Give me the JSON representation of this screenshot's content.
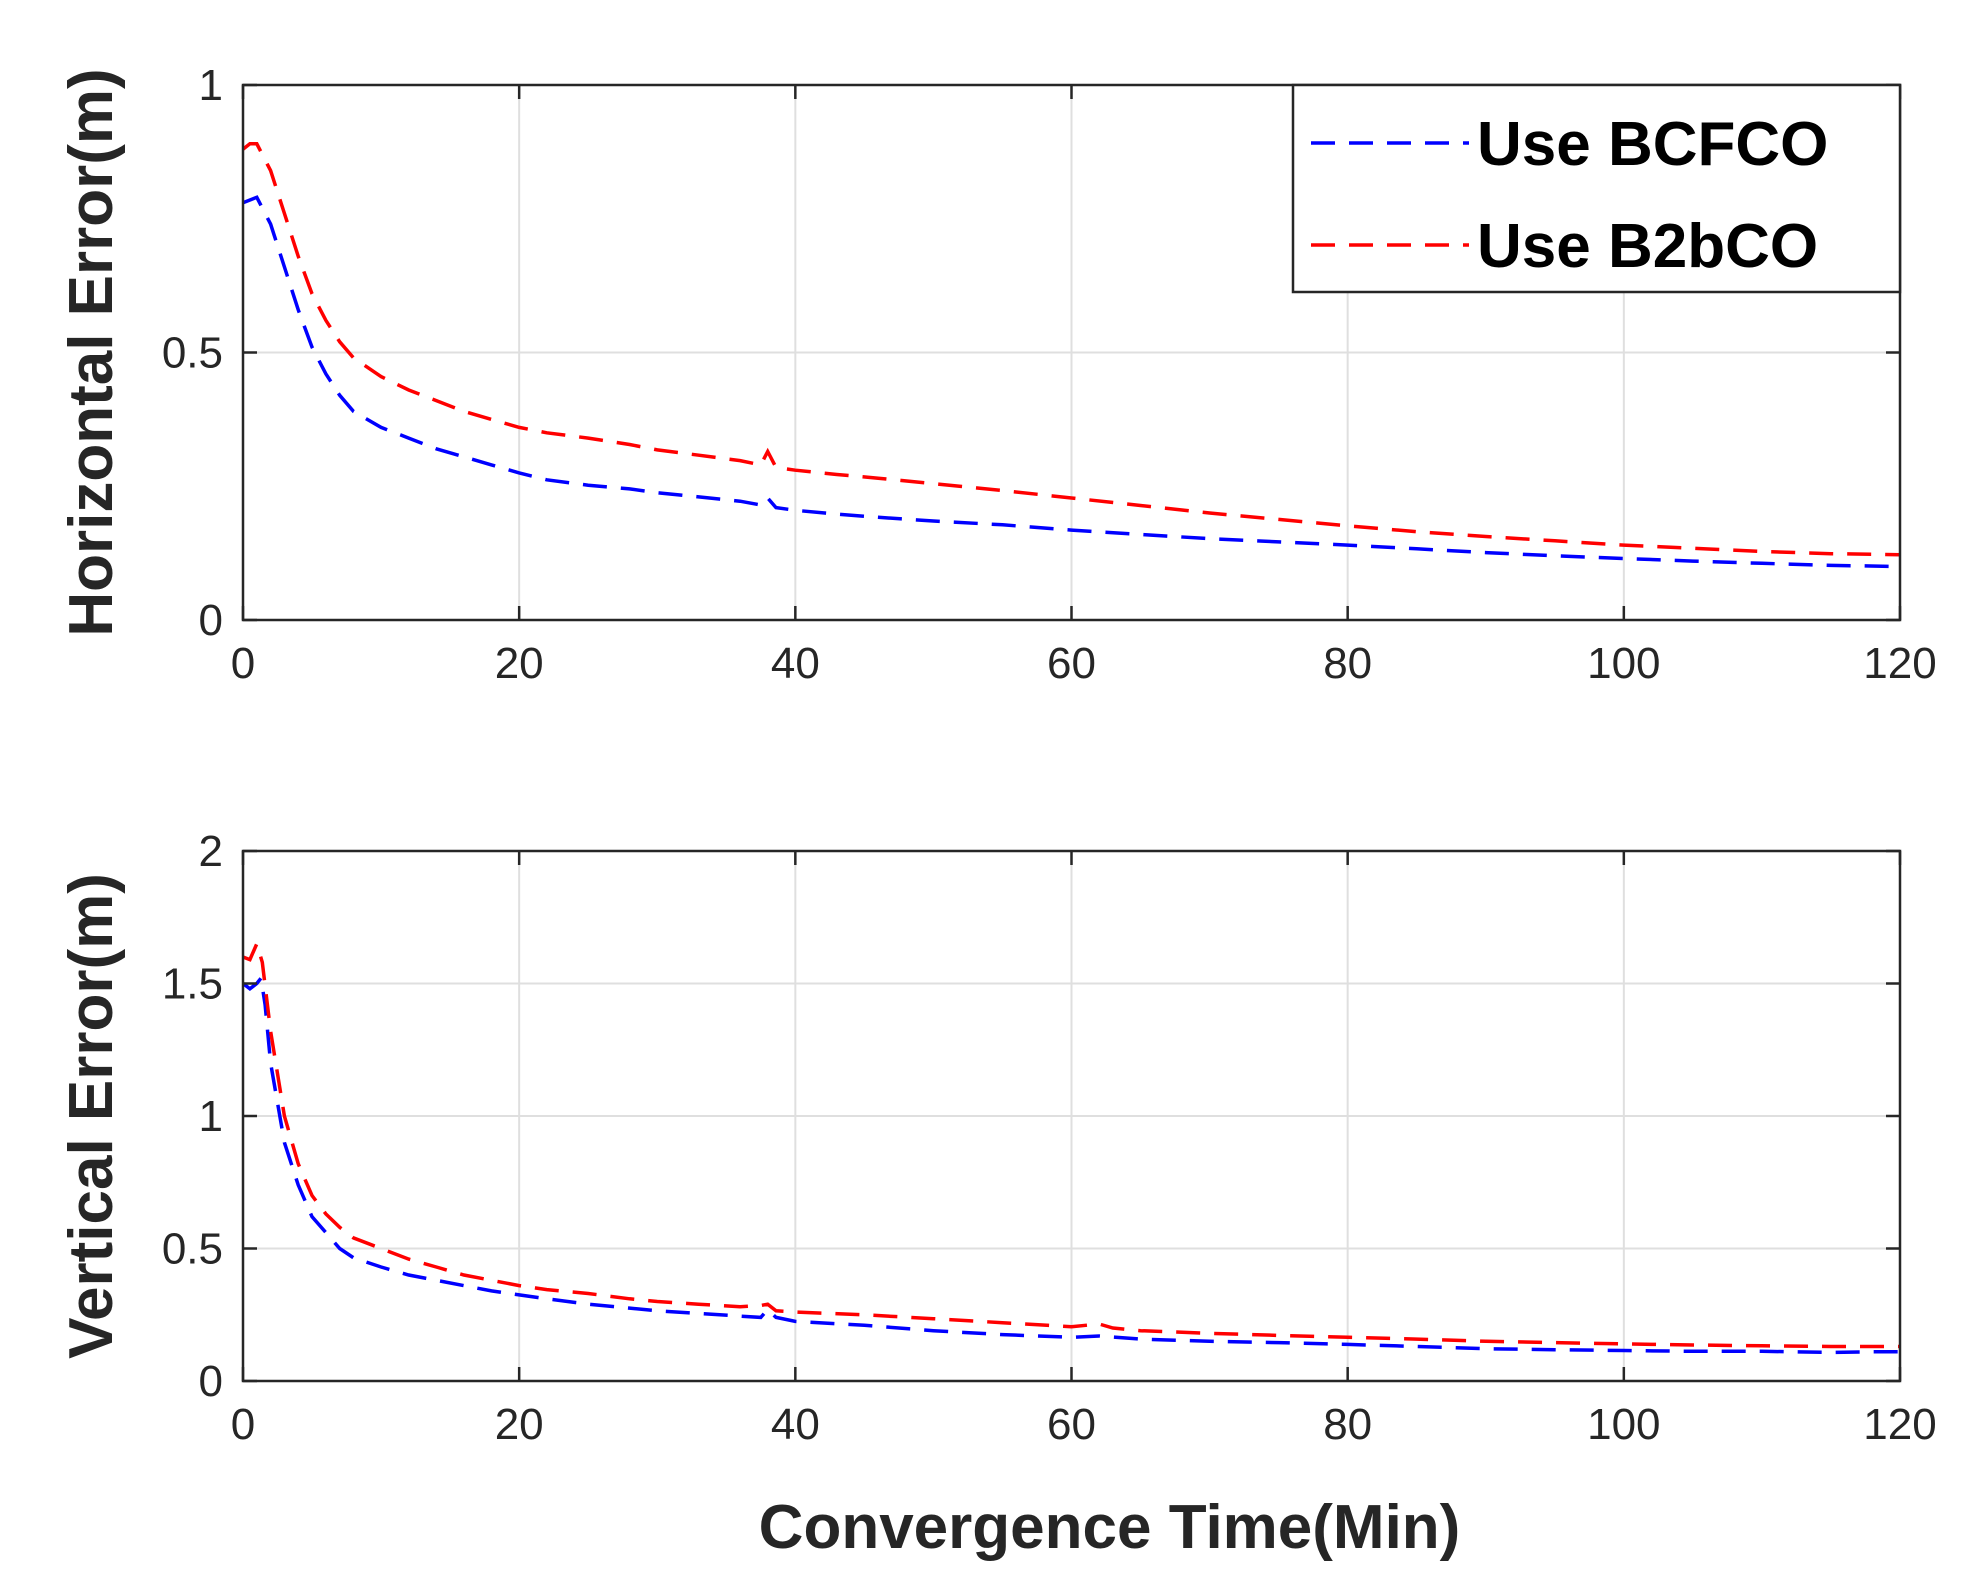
{
  "chart_data": [
    {
      "type": "line",
      "ylabel": "Horizontal Error(m)",
      "xlabel": "",
      "xlim": [
        0,
        120
      ],
      "ylim": [
        0,
        1
      ],
      "xticks": [
        "0",
        "20",
        "40",
        "60",
        "80",
        "100",
        "120"
      ],
      "yticks": [
        "0",
        "0.5",
        "1"
      ],
      "grid": true,
      "legend": "top-right",
      "series": [
        {
          "name": "Use BCFCO",
          "color": "#0000ff",
          "style": "dashed",
          "points": [
            [
              0,
              0.78
            ],
            [
              1,
              0.79
            ],
            [
              2,
              0.74
            ],
            [
              3,
              0.66
            ],
            [
              4,
              0.58
            ],
            [
              5,
              0.51
            ],
            [
              6,
              0.46
            ],
            [
              7,
              0.42
            ],
            [
              8,
              0.39
            ],
            [
              10,
              0.36
            ],
            [
              12,
              0.34
            ],
            [
              14,
              0.32
            ],
            [
              16,
              0.305
            ],
            [
              18,
              0.29
            ],
            [
              20,
              0.275
            ],
            [
              22,
              0.262
            ],
            [
              25,
              0.252
            ],
            [
              28,
              0.245
            ],
            [
              30,
              0.238
            ],
            [
              33,
              0.23
            ],
            [
              36,
              0.222
            ],
            [
              37.5,
              0.215
            ],
            [
              38,
              0.228
            ],
            [
              38.6,
              0.21
            ],
            [
              40,
              0.205
            ],
            [
              43,
              0.198
            ],
            [
              46,
              0.192
            ],
            [
              50,
              0.185
            ],
            [
              55,
              0.178
            ],
            [
              60,
              0.168
            ],
            [
              65,
              0.16
            ],
            [
              70,
              0.152
            ],
            [
              75,
              0.146
            ],
            [
              80,
              0.14
            ],
            [
              85,
              0.133
            ],
            [
              90,
              0.126
            ],
            [
              95,
              0.12
            ],
            [
              100,
              0.115
            ],
            [
              105,
              0.11
            ],
            [
              110,
              0.106
            ],
            [
              115,
              0.102
            ],
            [
              120,
              0.1
            ]
          ]
        },
        {
          "name": "Use B2bCO",
          "color": "#ff0000",
          "style": "dashed",
          "points": [
            [
              0,
              0.88
            ],
            [
              0.5,
              0.89
            ],
            [
              1,
              0.89
            ],
            [
              2,
              0.84
            ],
            [
              3,
              0.76
            ],
            [
              4,
              0.68
            ],
            [
              5,
              0.61
            ],
            [
              6,
              0.56
            ],
            [
              7,
              0.52
            ],
            [
              8,
              0.49
            ],
            [
              10,
              0.455
            ],
            [
              12,
              0.43
            ],
            [
              14,
              0.41
            ],
            [
              16,
              0.39
            ],
            [
              18,
              0.375
            ],
            [
              20,
              0.36
            ],
            [
              22,
              0.35
            ],
            [
              25,
              0.34
            ],
            [
              28,
              0.328
            ],
            [
              30,
              0.318
            ],
            [
              33,
              0.308
            ],
            [
              36,
              0.298
            ],
            [
              37.5,
              0.29
            ],
            [
              38,
              0.315
            ],
            [
              38.6,
              0.285
            ],
            [
              40,
              0.28
            ],
            [
              43,
              0.272
            ],
            [
              46,
              0.265
            ],
            [
              50,
              0.255
            ],
            [
              55,
              0.242
            ],
            [
              60,
              0.228
            ],
            [
              65,
              0.214
            ],
            [
              70,
              0.2
            ],
            [
              75,
              0.188
            ],
            [
              80,
              0.176
            ],
            [
              85,
              0.165
            ],
            [
              90,
              0.156
            ],
            [
              95,
              0.148
            ],
            [
              100,
              0.14
            ],
            [
              105,
              0.134
            ],
            [
              110,
              0.128
            ],
            [
              115,
              0.124
            ],
            [
              120,
              0.122
            ]
          ]
        }
      ]
    },
    {
      "type": "line",
      "ylabel": "Vertical Error(m)",
      "xlabel": "Convergence Time(Min)",
      "xlim": [
        0,
        120
      ],
      "ylim": [
        0,
        2
      ],
      "xticks": [
        "0",
        "20",
        "40",
        "60",
        "80",
        "100",
        "120"
      ],
      "yticks": [
        "0",
        "0.5",
        "1",
        "1.5",
        "2"
      ],
      "grid": true,
      "series": [
        {
          "name": "Use BCFCO",
          "color": "#0000ff",
          "style": "dashed",
          "points": [
            [
              0,
              1.5
            ],
            [
              0.5,
              1.48
            ],
            [
              1,
              1.5
            ],
            [
              1.3,
              1.52
            ],
            [
              1.6,
              1.42
            ],
            [
              2,
              1.2
            ],
            [
              3,
              0.9
            ],
            [
              4,
              0.74
            ],
            [
              5,
              0.62
            ],
            [
              6,
              0.56
            ],
            [
              7,
              0.5
            ],
            [
              8,
              0.465
            ],
            [
              10,
              0.43
            ],
            [
              12,
              0.4
            ],
            [
              14,
              0.38
            ],
            [
              16,
              0.36
            ],
            [
              18,
              0.34
            ],
            [
              20,
              0.325
            ],
            [
              22,
              0.31
            ],
            [
              25,
              0.29
            ],
            [
              28,
              0.275
            ],
            [
              30,
              0.265
            ],
            [
              33,
              0.255
            ],
            [
              36,
              0.245
            ],
            [
              37.5,
              0.24
            ],
            [
              38,
              0.27
            ],
            [
              38.6,
              0.24
            ],
            [
              40,
              0.225
            ],
            [
              45,
              0.21
            ],
            [
              50,
              0.19
            ],
            [
              55,
              0.175
            ],
            [
              60,
              0.165
            ],
            [
              62,
              0.17
            ],
            [
              65,
              0.158
            ],
            [
              70,
              0.15
            ],
            [
              75,
              0.145
            ],
            [
              80,
              0.138
            ],
            [
              85,
              0.13
            ],
            [
              90,
              0.122
            ],
            [
              95,
              0.118
            ],
            [
              100,
              0.115
            ],
            [
              105,
              0.112
            ],
            [
              110,
              0.112
            ],
            [
              115,
              0.108
            ],
            [
              118,
              0.11
            ],
            [
              120,
              0.11
            ]
          ]
        },
        {
          "name": "Use B2bCO",
          "color": "#ff0000",
          "style": "dashed",
          "points": [
            [
              0,
              1.6
            ],
            [
              0.5,
              1.59
            ],
            [
              1,
              1.65
            ],
            [
              1.4,
              1.58
            ],
            [
              2,
              1.32
            ],
            [
              3,
              1.0
            ],
            [
              4,
              0.82
            ],
            [
              5,
              0.7
            ],
            [
              6,
              0.63
            ],
            [
              7,
              0.58
            ],
            [
              8,
              0.54
            ],
            [
              10,
              0.5
            ],
            [
              12,
              0.46
            ],
            [
              14,
              0.43
            ],
            [
              16,
              0.4
            ],
            [
              18,
              0.38
            ],
            [
              20,
              0.36
            ],
            [
              22,
              0.345
            ],
            [
              25,
              0.33
            ],
            [
              28,
              0.31
            ],
            [
              30,
              0.3
            ],
            [
              33,
              0.29
            ],
            [
              36,
              0.28
            ],
            [
              37.5,
              0.285
            ],
            [
              38,
              0.29
            ],
            [
              38.6,
              0.265
            ],
            [
              40,
              0.26
            ],
            [
              45,
              0.25
            ],
            [
              50,
              0.235
            ],
            [
              55,
              0.22
            ],
            [
              60,
              0.205
            ],
            [
              62,
              0.215
            ],
            [
              63,
              0.2
            ],
            [
              65,
              0.19
            ],
            [
              70,
              0.18
            ],
            [
              75,
              0.172
            ],
            [
              80,
              0.165
            ],
            [
              85,
              0.158
            ],
            [
              90,
              0.15
            ],
            [
              95,
              0.145
            ],
            [
              100,
              0.14
            ],
            [
              105,
              0.136
            ],
            [
              110,
              0.133
            ],
            [
              115,
              0.13
            ],
            [
              120,
              0.13
            ]
          ]
        }
      ]
    }
  ]
}
